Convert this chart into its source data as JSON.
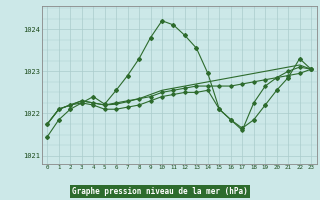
{
  "xlabel": "Graphe pression niveau de la mer (hPa)",
  "x_hours": [
    0,
    1,
    2,
    3,
    4,
    5,
    6,
    7,
    8,
    9,
    10,
    11,
    12,
    13,
    14,
    15,
    16,
    17,
    18,
    19,
    20,
    21,
    22,
    23
  ],
  "line1": [
    1021.45,
    1021.85,
    1022.1,
    1022.25,
    1022.4,
    1022.22,
    1022.55,
    1022.9,
    1023.3,
    1023.8,
    1024.2,
    1024.1,
    1023.85,
    1023.55,
    1022.95,
    1022.1,
    1021.85,
    1021.65,
    1021.85,
    1022.2,
    1022.55,
    1022.85,
    1023.3,
    1023.05
  ],
  "line2": [
    1021.75,
    1022.1,
    1022.2,
    1022.3,
    1022.25,
    1022.2,
    1022.25,
    1022.3,
    1022.35,
    1022.4,
    1022.5,
    1022.55,
    1022.6,
    1022.65,
    1022.65,
    1022.65,
    1022.65,
    1022.7,
    1022.75,
    1022.8,
    1022.85,
    1022.9,
    1022.95,
    1023.05
  ],
  "line3": [
    1021.75,
    1022.1,
    1022.2,
    1022.3,
    1022.25,
    1022.2,
    1022.22,
    1022.28,
    1022.35,
    1022.45,
    1022.55,
    1022.6,
    1022.65,
    1022.7,
    1022.75,
    1022.8,
    1022.85,
    1022.9,
    1022.95,
    1023.0,
    1023.05,
    1023.1,
    1023.15,
    1023.05
  ],
  "line4": [
    1021.75,
    1022.1,
    1022.2,
    1022.25,
    1022.2,
    1022.1,
    1022.1,
    1022.15,
    1022.2,
    1022.3,
    1022.4,
    1022.45,
    1022.5,
    1022.5,
    1022.55,
    1022.1,
    1021.85,
    1021.6,
    1022.25,
    1022.65,
    1022.85,
    1023.0,
    1023.1,
    1023.05
  ],
  "ylim_min": 1020.8,
  "ylim_max": 1024.55,
  "yticks": [
    1021,
    1022,
    1023,
    1024
  ],
  "line_color_dark": "#2d6b2d",
  "line_color_mid": "#3a7a3a",
  "bg_color": "#cce8e8",
  "grid_color": "#aacccc",
  "text_color": "#1a4a1a",
  "label_bg": "#2d6b2d",
  "label_fg": "#ffffff"
}
